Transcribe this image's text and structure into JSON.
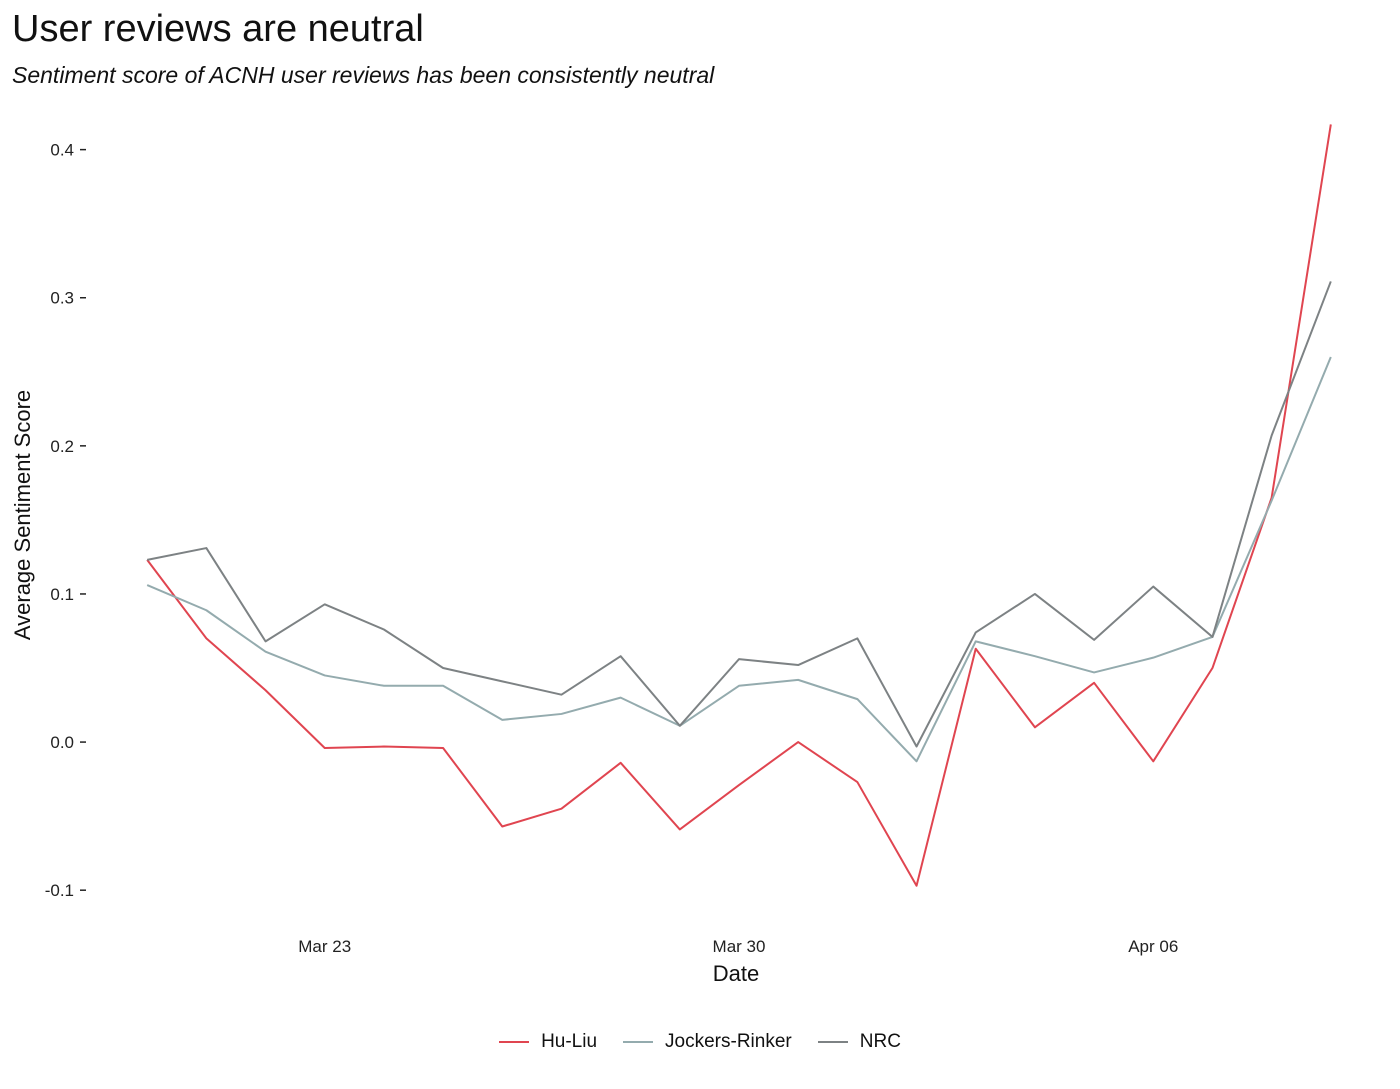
{
  "chart_data": {
    "type": "line",
    "title": "User reviews are neutral",
    "subtitle": "Sentiment score of ACNH user reviews has been consistently neutral",
    "xlabel": "Date",
    "ylabel": "Average Sentiment Score",
    "x_ticks": [
      {
        "date": "2020-03-23",
        "label": "Mar 23"
      },
      {
        "date": "2020-03-30",
        "label": "Mar 30"
      },
      {
        "date": "2020-04-06",
        "label": "Apr 06"
      }
    ],
    "y_ticks": [
      {
        "value": -0.1,
        "label": "-0.1"
      },
      {
        "value": 0.0,
        "label": "0.0"
      },
      {
        "value": 0.1,
        "label": "0.1"
      },
      {
        "value": 0.2,
        "label": "0.2"
      },
      {
        "value": 0.3,
        "label": "0.3"
      },
      {
        "value": 0.4,
        "label": "0.4"
      }
    ],
    "xlim": [
      "2020-03-19",
      "2020-04-10"
    ],
    "ylim": [
      -0.11,
      0.42
    ],
    "grid": false,
    "legend_position": "bottom",
    "x": [
      "2020-03-20",
      "2020-03-21",
      "2020-03-22",
      "2020-03-23",
      "2020-03-24",
      "2020-03-25",
      "2020-03-26",
      "2020-03-27",
      "2020-03-28",
      "2020-03-29",
      "2020-03-30",
      "2020-03-31",
      "2020-04-01",
      "2020-04-02",
      "2020-04-03",
      "2020-04-04",
      "2020-04-05",
      "2020-04-06",
      "2020-04-07",
      "2020-04-08",
      "2020-04-09"
    ],
    "series": [
      {
        "name": "Hu-Liu",
        "color": "#e04550",
        "values": [
          0.123,
          0.07,
          0.035,
          -0.004,
          -0.003,
          -0.004,
          -0.057,
          -0.045,
          -0.014,
          -0.059,
          -0.029,
          0.0,
          -0.027,
          -0.097,
          0.063,
          0.01,
          0.04,
          -0.013,
          0.05,
          0.165,
          0.417
        ]
      },
      {
        "name": "Jockers-Rinker",
        "color": "#94abae",
        "values": [
          0.106,
          0.089,
          0.061,
          0.045,
          0.038,
          0.038,
          0.015,
          0.019,
          0.03,
          0.011,
          0.038,
          0.042,
          0.029,
          -0.013,
          0.068,
          0.058,
          0.047,
          0.057,
          0.071,
          0.163,
          0.26
        ]
      },
      {
        "name": "NRC",
        "color": "#7d8284",
        "values": [
          0.123,
          0.131,
          0.068,
          0.093,
          0.076,
          0.05,
          0.041,
          0.032,
          0.058,
          0.011,
          0.056,
          0.052,
          0.07,
          -0.003,
          0.074,
          0.1,
          0.069,
          0.105,
          0.071,
          0.207,
          0.311
        ]
      }
    ]
  }
}
